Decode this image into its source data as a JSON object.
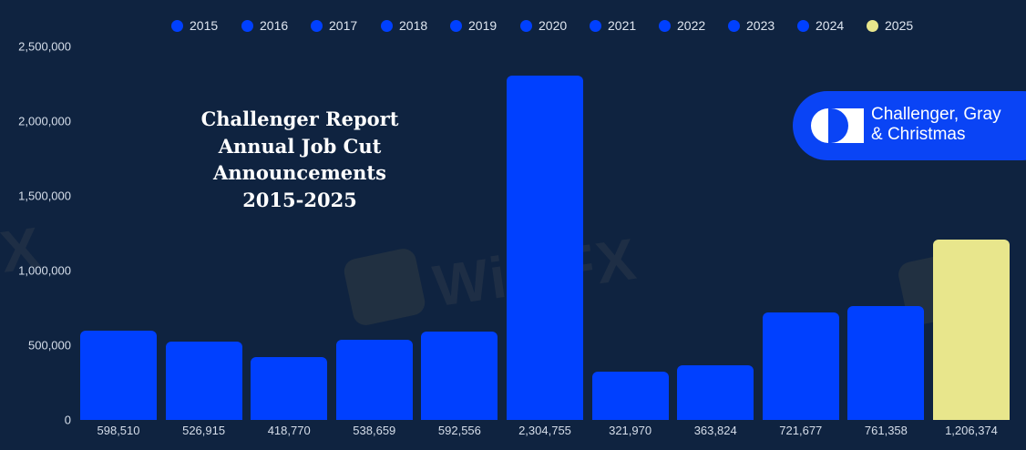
{
  "chart_data": {
    "type": "bar",
    "title": "Challenger Report Annual Job Cut Announcements 2015-2025",
    "title_lines": [
      "Challenger Report",
      "Annual Job Cut",
      "Announcements",
      "2015-2025"
    ],
    "xlabel": "",
    "ylabel": "",
    "ylim": [
      0,
      2500000
    ],
    "yticks": [
      "2,500,000",
      "2,000,000",
      "1,500,000",
      "1,000,000",
      "500,000",
      "0"
    ],
    "ytick_values": [
      2500000,
      2000000,
      1500000,
      1000000,
      500000,
      0
    ],
    "grid": false,
    "legend_position": "top",
    "categories": [
      "2015",
      "2016",
      "2017",
      "2018",
      "2019",
      "2020",
      "2021",
      "2022",
      "2023",
      "2024",
      "2025"
    ],
    "values": [
      598510,
      526915,
      418770,
      538659,
      592556,
      2304755,
      321970,
      363824,
      721677,
      761358,
      1206374
    ],
    "value_labels": [
      "598,510",
      "526,915",
      "418,770",
      "538,659",
      "592,556",
      "2,304,755",
      "321,970",
      "363,824",
      "721,677",
      "761,358",
      "1,206,374"
    ],
    "colors": [
      "#0040ff",
      "#0040ff",
      "#0040ff",
      "#0040ff",
      "#0040ff",
      "#0040ff",
      "#0040ff",
      "#0040ff",
      "#0040ff",
      "#0040ff",
      "#e8e68c"
    ]
  },
  "legend": {
    "items": [
      {
        "label": "2015",
        "color": "#0040ff"
      },
      {
        "label": "2016",
        "color": "#0040ff"
      },
      {
        "label": "2017",
        "color": "#0040ff"
      },
      {
        "label": "2018",
        "color": "#0040ff"
      },
      {
        "label": "2019",
        "color": "#0040ff"
      },
      {
        "label": "2020",
        "color": "#0040ff"
      },
      {
        "label": "2021",
        "color": "#0040ff"
      },
      {
        "label": "2022",
        "color": "#0040ff"
      },
      {
        "label": "2023",
        "color": "#0040ff"
      },
      {
        "label": "2024",
        "color": "#0040ff"
      },
      {
        "label": "2025",
        "color": "#e8e68c"
      }
    ]
  },
  "logo": {
    "text": "Challenger, Gray\n& Christmas",
    "background": "#0a44f5"
  },
  "watermark": {
    "text": "WikiFX"
  },
  "colors": {
    "background": "#0f2340",
    "bar": "#0040ff",
    "bar_highlight": "#e8e68c",
    "axis_text": "#d6deea"
  }
}
